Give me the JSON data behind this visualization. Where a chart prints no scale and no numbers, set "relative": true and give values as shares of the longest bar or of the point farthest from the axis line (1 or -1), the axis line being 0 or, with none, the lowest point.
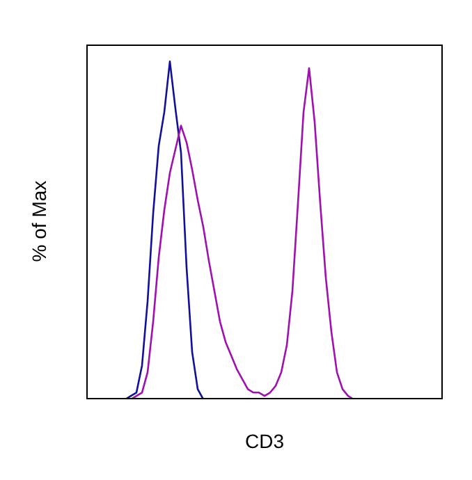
{
  "chart_data": {
    "type": "line",
    "relative": true,
    "xlabel": "CD3",
    "ylabel": "% of Max",
    "marker": "none",
    "categories": [
      null,
      null,
      null,
      null,
      null,
      null,
      null,
      null,
      null,
      null,
      null,
      null,
      null,
      null,
      null,
      null,
      null,
      null,
      null,
      null,
      null,
      null,
      null,
      null,
      null,
      null,
      null,
      null,
      null,
      null,
      null,
      null,
      null,
      null,
      null,
      null,
      null,
      null,
      null,
      null,
      null,
      null,
      null,
      null,
      null,
      null,
      null,
      null,
      null,
      null,
      null,
      null,
      null,
      null,
      null,
      null,
      null,
      null,
      null,
      null,
      null,
      null,
      null,
      null,
      null
    ],
    "series": [
      {
        "color": "#10109a",
        "values": [
          null,
          null,
          null,
          null,
          null,
          null,
          null,
          0,
          0.01,
          0.02,
          0.1,
          0.29,
          0.55,
          0.75,
          0.85,
          1,
          0.86,
          0.73,
          0.39,
          0.14,
          0.03,
          0,
          null,
          null,
          null,
          null,
          null,
          null,
          null,
          null,
          null,
          null,
          null,
          null,
          null,
          null,
          null,
          null,
          null,
          null,
          null,
          null,
          null,
          null,
          null,
          null,
          null,
          null,
          null,
          null,
          null,
          null,
          null,
          null,
          null,
          null,
          null,
          null,
          null,
          null,
          null,
          null,
          null,
          null,
          null
        ]
      },
      {
        "color": "#a010b0",
        "values": [
          null,
          null,
          null,
          null,
          null,
          null,
          null,
          null,
          0,
          0.01,
          0.02,
          0.08,
          0.23,
          0.42,
          0.56,
          0.67,
          0.74,
          0.81,
          0.76,
          0.68,
          0.59,
          0.51,
          0.41,
          0.32,
          0.23,
          0.17,
          0.13,
          0.09,
          0.06,
          0.03,
          0.02,
          0.02,
          0.01,
          0.02,
          0.04,
          0.08,
          0.16,
          0.32,
          0.58,
          0.85,
          0.98,
          0.82,
          0.58,
          0.36,
          0.2,
          0.08,
          0.03,
          0.01,
          0,
          null,
          null,
          null,
          null,
          null,
          null,
          null,
          null,
          null,
          null,
          null,
          null,
          null,
          null,
          null,
          null
        ]
      }
    ]
  }
}
